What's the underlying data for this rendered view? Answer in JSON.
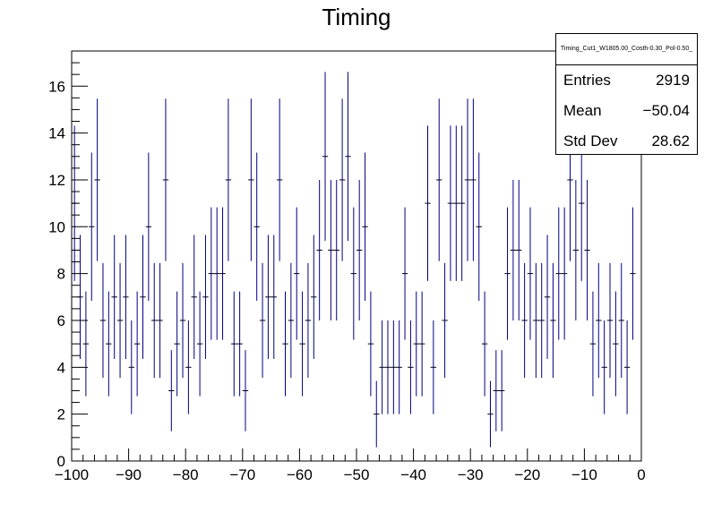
{
  "chart_data": {
    "type": "histogram",
    "title": "Timing",
    "xlim": [
      -100,
      0
    ],
    "ylim": [
      0,
      17.5
    ],
    "bin_width": 1,
    "x_ticks": [
      "−100",
      "−90",
      "−80",
      "−70",
      "−60",
      "−50",
      "−40",
      "−30",
      "−20",
      "−10",
      "0"
    ],
    "y_ticks": [
      "0",
      "2",
      "4",
      "6",
      "8",
      "10",
      "12",
      "14",
      "16"
    ],
    "error_bars": "sqrt(N)",
    "color": "#000080",
    "grid": false,
    "legend": "none",
    "bin_low_edges": [
      -100,
      -99,
      -98,
      -97,
      -96,
      -95,
      -94,
      -93,
      -92,
      -91,
      -90,
      -89,
      -88,
      -87,
      -86,
      -85,
      -84,
      -83,
      -82,
      -81,
      -80,
      -79,
      -78,
      -77,
      -76,
      -75,
      -74,
      -73,
      -72,
      -71,
      -70,
      -69,
      -68,
      -67,
      -66,
      -65,
      -64,
      -63,
      -62,
      -61,
      -60,
      -59,
      -58,
      -57,
      -56,
      -55,
      -54,
      -53,
      -52,
      -51,
      -50,
      -49,
      -48,
      -47,
      -46,
      -45,
      -44,
      -43,
      -42,
      -41,
      -40,
      -39,
      -38,
      -37,
      -36,
      -35,
      -34,
      -33,
      -32,
      -31,
      -30,
      -29,
      -28,
      -27,
      -26,
      -25,
      -24,
      -23,
      -22,
      -21,
      -20,
      -19,
      -18,
      -17,
      -16,
      -15,
      -14,
      -13,
      -12,
      -11,
      -10,
      -9,
      -8,
      -7,
      -6,
      -5,
      -4,
      -3,
      -2,
      -1
    ],
    "counts": [
      11,
      7,
      5,
      10,
      12,
      6,
      5,
      7,
      6,
      7,
      4,
      5,
      7,
      10,
      6,
      6,
      12,
      3,
      5,
      6,
      4,
      7,
      5,
      7,
      8,
      8,
      8,
      12,
      5,
      5,
      3,
      12,
      10,
      6,
      7,
      7,
      12,
      5,
      6,
      8,
      5,
      6,
      7,
      9,
      13,
      9,
      9,
      12,
      13,
      8,
      9,
      10,
      5,
      2,
      4,
      4,
      4,
      4,
      8,
      4,
      5,
      5,
      11,
      4,
      12,
      6,
      11,
      11,
      11,
      12,
      12,
      10,
      5,
      2,
      3,
      3,
      8,
      9,
      9,
      6,
      8,
      6,
      6,
      7,
      6,
      8,
      8,
      12,
      9,
      11,
      9,
      5,
      6,
      4,
      6,
      5,
      6,
      4,
      8,
      0
    ]
  },
  "stats": {
    "title": "Timing_Cut1_W1805.00_Costh-0.30_Pol-0.50_",
    "rows": [
      {
        "label": "Entries",
        "value": "2919"
      },
      {
        "label": "Mean",
        "value": "−50.04"
      },
      {
        "label": "Std Dev",
        "value": "28.62"
      }
    ]
  }
}
